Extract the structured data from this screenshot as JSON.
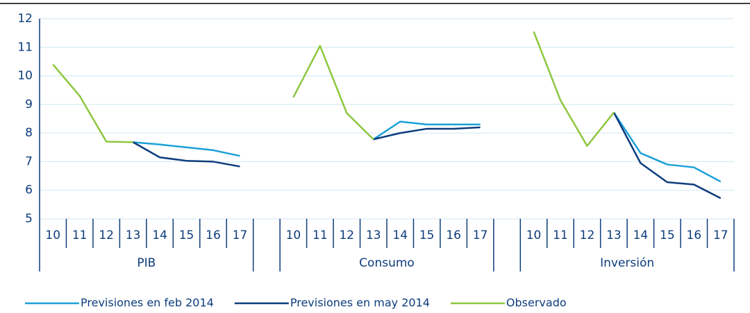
{
  "chart_data": {
    "type": "line",
    "groups": [
      "PIB",
      "Consumo",
      "Inversión"
    ],
    "categories": [
      "10",
      "11",
      "12",
      "13",
      "14",
      "15",
      "16",
      "17",
      null,
      "10",
      "11",
      "12",
      "13",
      "14",
      "15",
      "16",
      "17",
      null,
      "10",
      "11",
      "12",
      "13",
      "14",
      "15",
      "16",
      "17"
    ],
    "series": [
      {
        "name": "Previsiones en feb 2014",
        "color": "#1ba0d8",
        "values": [
          null,
          null,
          null,
          7.68,
          7.6,
          7.5,
          7.4,
          7.2,
          null,
          null,
          null,
          null,
          7.78,
          8.4,
          8.3,
          8.3,
          8.3,
          null,
          null,
          null,
          null,
          8.72,
          7.3,
          6.9,
          6.8,
          6.3
        ]
      },
      {
        "name": "Previsiones en may 2014",
        "color": "#0c3c7c",
        "values": [
          null,
          null,
          null,
          7.68,
          7.15,
          7.03,
          7.0,
          6.83,
          null,
          null,
          null,
          null,
          7.78,
          8.0,
          8.15,
          8.15,
          8.2,
          null,
          null,
          null,
          null,
          8.72,
          6.95,
          6.28,
          6.2,
          5.72
        ]
      },
      {
        "name": "Observado",
        "color": "#8dc63f",
        "values": [
          10.4,
          9.3,
          7.7,
          7.68,
          null,
          null,
          null,
          null,
          null,
          9.25,
          11.05,
          8.7,
          7.78,
          null,
          null,
          null,
          null,
          null,
          11.55,
          9.15,
          7.55,
          8.72,
          null,
          null,
          null,
          null
        ]
      }
    ],
    "ylim": [
      5,
      12
    ],
    "yticks": [
      5,
      6,
      7,
      8,
      9,
      10,
      11,
      12
    ],
    "grid": true
  }
}
